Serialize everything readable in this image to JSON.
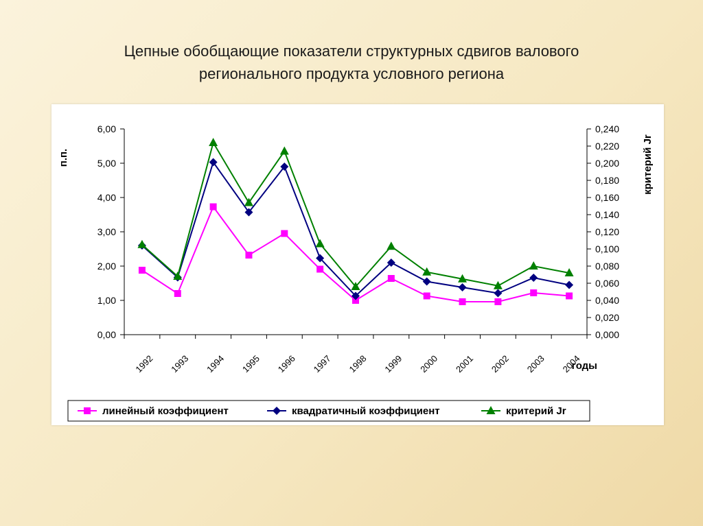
{
  "slide": {
    "title_line1": "Цепные обобщающие показатели структурных сдвигов валового",
    "title_line2": "регионального продукта условного региона"
  },
  "chart_data": {
    "type": "line",
    "categories": [
      "1992",
      "1993",
      "1994",
      "1995",
      "1996",
      "1997",
      "1998",
      "1999",
      "2000",
      "2001",
      "2002",
      "2003",
      "2004"
    ],
    "xlabel": "годы",
    "ylabel": "п.п.",
    "ylim": [
      0,
      6
    ],
    "yticks": [
      "0,00",
      "1,00",
      "2,00",
      "3,00",
      "4,00",
      "5,00",
      "6,00"
    ],
    "y2label": "критерий Jr",
    "y2lim": [
      0,
      0.24
    ],
    "y2ticks": [
      "0,000",
      "0,020",
      "0,040",
      "0,060",
      "0,080",
      "0,100",
      "0,120",
      "0,140",
      "0,160",
      "0,180",
      "0,200",
      "0,220",
      "0,240"
    ],
    "grid": false,
    "legend_position": "bottom",
    "series": [
      {
        "name": "линейный  коэффициент",
        "axis": "left",
        "color": "#ff00ff",
        "marker": "square",
        "values": [
          1.88,
          1.2,
          3.73,
          2.32,
          2.95,
          1.91,
          1.0,
          1.64,
          1.13,
          0.96,
          0.96,
          1.22,
          1.13
        ]
      },
      {
        "name": "квадратичный коэффициент",
        "axis": "left",
        "color": "#000080",
        "marker": "diamond",
        "values": [
          2.6,
          1.67,
          5.03,
          3.57,
          4.9,
          2.23,
          1.13,
          2.1,
          1.55,
          1.38,
          1.21,
          1.66,
          1.45
        ]
      },
      {
        "name": "критерий Jr",
        "axis": "right",
        "color": "#008000",
        "marker": "triangle",
        "values": [
          0.105,
          0.068,
          0.224,
          0.154,
          0.214,
          0.106,
          0.056,
          0.103,
          0.073,
          0.065,
          0.057,
          0.08,
          0.072
        ]
      }
    ]
  }
}
